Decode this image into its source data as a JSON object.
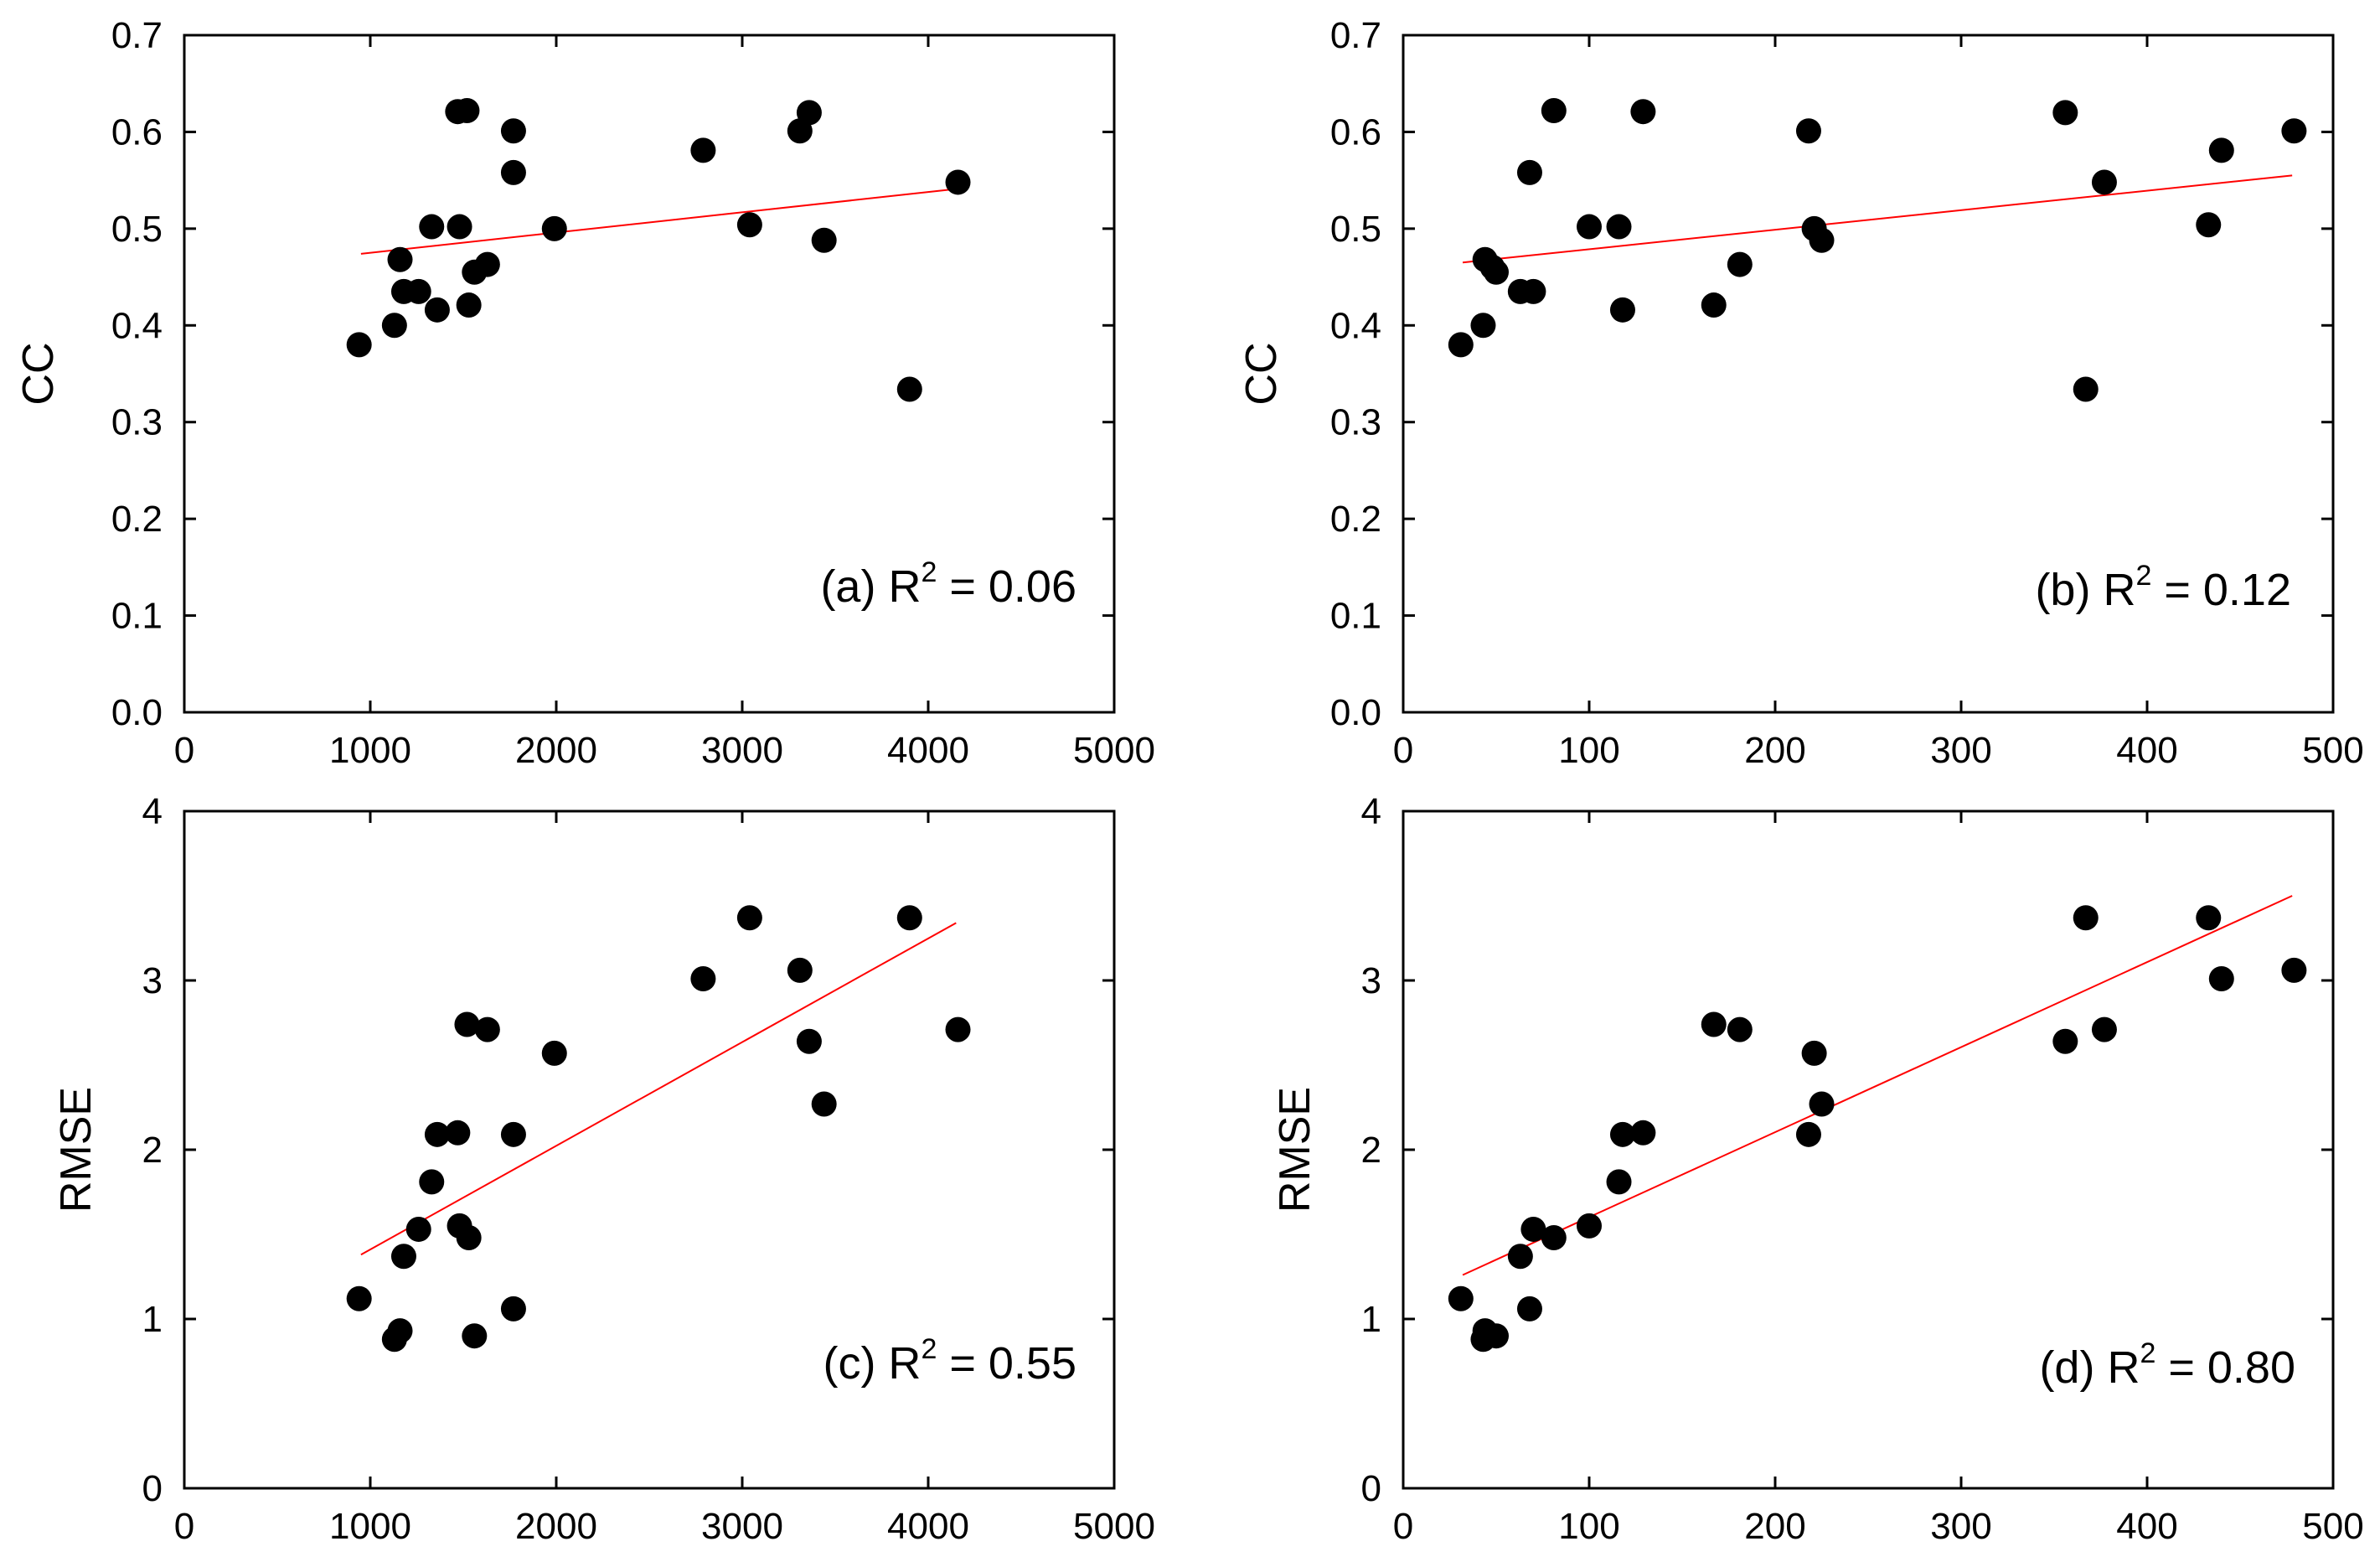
{
  "figure": {
    "panels": 4
  },
  "chart_data": [
    {
      "id": "a",
      "type": "scatter",
      "title": "",
      "xlabel": "",
      "ylabel": "CC",
      "xlim": [
        0,
        5000
      ],
      "ylim": [
        0,
        0.7
      ],
      "xticks": [
        "0",
        "1000",
        "2000",
        "3000",
        "4000",
        "5000"
      ],
      "xtick_values": [
        0,
        1000,
        2000,
        3000,
        4000,
        5000
      ],
      "yticks": [
        "0.0",
        "0.1",
        "0.2",
        "0.3",
        "0.4",
        "0.5",
        "0.6",
        "0.7"
      ],
      "ytick_values": [
        0,
        0.1,
        0.2,
        0.3,
        0.4,
        0.5,
        0.6,
        0.7
      ],
      "annotation": {
        "prefix": "(a) R",
        "sup": "2",
        "suffix": " = 0.06"
      },
      "fit_line": {
        "x": [
          950,
          4150
        ],
        "y": [
          0.474,
          0.541
        ],
        "color": "#ff0000"
      },
      "marker_color": "#000000",
      "points": [
        {
          "x": 940,
          "y": 0.38
        },
        {
          "x": 1130,
          "y": 0.4
        },
        {
          "x": 1160,
          "y": 0.468
        },
        {
          "x": 1180,
          "y": 0.435
        },
        {
          "x": 1260,
          "y": 0.435
        },
        {
          "x": 1330,
          "y": 0.502
        },
        {
          "x": 1360,
          "y": 0.416
        },
        {
          "x": 1470,
          "y": 0.621
        },
        {
          "x": 1480,
          "y": 0.502
        },
        {
          "x": 1520,
          "y": 0.622
        },
        {
          "x": 1530,
          "y": 0.421
        },
        {
          "x": 1560,
          "y": 0.455
        },
        {
          "x": 1630,
          "y": 0.463
        },
        {
          "x": 1770,
          "y": 0.601
        },
        {
          "x": 1770,
          "y": 0.558
        },
        {
          "x": 1990,
          "y": 0.5
        },
        {
          "x": 2790,
          "y": 0.581
        },
        {
          "x": 3040,
          "y": 0.504
        },
        {
          "x": 3310,
          "y": 0.601
        },
        {
          "x": 3360,
          "y": 0.62
        },
        {
          "x": 3440,
          "y": 0.488
        },
        {
          "x": 3900,
          "y": 0.334
        },
        {
          "x": 4160,
          "y": 0.548
        }
      ]
    },
    {
      "id": "b",
      "type": "scatter",
      "title": "",
      "xlabel": "",
      "ylabel": "CC",
      "xlim": [
        0,
        500
      ],
      "ylim": [
        0,
        0.7
      ],
      "xticks": [
        "0",
        "100",
        "200",
        "300",
        "400",
        "500"
      ],
      "xtick_values": [
        0,
        100,
        200,
        300,
        400,
        500
      ],
      "yticks": [
        "0.0",
        "0.1",
        "0.2",
        "0.3",
        "0.4",
        "0.5",
        "0.6",
        "0.7"
      ],
      "ytick_values": [
        0,
        0.1,
        0.2,
        0.3,
        0.4,
        0.5,
        0.6,
        0.7
      ],
      "annotation": {
        "prefix": "(b) R",
        "sup": "2",
        "suffix": " = 0.12"
      },
      "fit_line": {
        "x": [
          32,
          478
        ],
        "y": [
          0.465,
          0.555
        ],
        "color": "#ff0000"
      },
      "marker_color": "#000000",
      "points": [
        {
          "x": 31,
          "y": 0.38
        },
        {
          "x": 43,
          "y": 0.4
        },
        {
          "x": 44,
          "y": 0.468
        },
        {
          "x": 48,
          "y": 0.46
        },
        {
          "x": 50,
          "y": 0.455
        },
        {
          "x": 63,
          "y": 0.435
        },
        {
          "x": 68,
          "y": 0.558
        },
        {
          "x": 70,
          "y": 0.435
        },
        {
          "x": 81,
          "y": 0.622
        },
        {
          "x": 100,
          "y": 0.502
        },
        {
          "x": 116,
          "y": 0.502
        },
        {
          "x": 118,
          "y": 0.416
        },
        {
          "x": 129,
          "y": 0.621
        },
        {
          "x": 167,
          "y": 0.421
        },
        {
          "x": 181,
          "y": 0.463
        },
        {
          "x": 218,
          "y": 0.601
        },
        {
          "x": 221,
          "y": 0.5
        },
        {
          "x": 225,
          "y": 0.488
        },
        {
          "x": 356,
          "y": 0.62
        },
        {
          "x": 367,
          "y": 0.334
        },
        {
          "x": 377,
          "y": 0.548
        },
        {
          "x": 433,
          "y": 0.504
        },
        {
          "x": 440,
          "y": 0.581
        },
        {
          "x": 479,
          "y": 0.601
        }
      ]
    },
    {
      "id": "c",
      "type": "scatter",
      "title": "",
      "xlabel": "",
      "ylabel": "RMSE",
      "xlim": [
        0,
        5000
      ],
      "ylim": [
        0,
        4
      ],
      "xticks": [
        "0",
        "1000",
        "2000",
        "3000",
        "4000",
        "5000"
      ],
      "xtick_values": [
        0,
        1000,
        2000,
        3000,
        4000,
        5000
      ],
      "yticks": [
        "0",
        "1",
        "2",
        "3",
        "4"
      ],
      "ytick_values": [
        0,
        1,
        2,
        3,
        4
      ],
      "annotation": {
        "prefix": "(c) R",
        "sup": "2",
        "suffix": " = 0.55"
      },
      "fit_line": {
        "x": [
          950,
          4150
        ],
        "y": [
          1.38,
          3.34
        ],
        "color": "#ff0000"
      },
      "marker_color": "#000000",
      "points": [
        {
          "x": 940,
          "y": 1.12
        },
        {
          "x": 1130,
          "y": 0.88
        },
        {
          "x": 1160,
          "y": 0.93
        },
        {
          "x": 1180,
          "y": 1.37
        },
        {
          "x": 1260,
          "y": 1.53
        },
        {
          "x": 1330,
          "y": 1.81
        },
        {
          "x": 1360,
          "y": 2.09
        },
        {
          "x": 1470,
          "y": 2.1
        },
        {
          "x": 1480,
          "y": 1.55
        },
        {
          "x": 1520,
          "y": 2.74
        },
        {
          "x": 1530,
          "y": 1.48
        },
        {
          "x": 1560,
          "y": 0.9
        },
        {
          "x": 1630,
          "y": 2.71
        },
        {
          "x": 1770,
          "y": 2.09
        },
        {
          "x": 1770,
          "y": 1.06
        },
        {
          "x": 1990,
          "y": 2.57
        },
        {
          "x": 2790,
          "y": 3.01
        },
        {
          "x": 3040,
          "y": 3.37
        },
        {
          "x": 3310,
          "y": 3.06
        },
        {
          "x": 3360,
          "y": 2.64
        },
        {
          "x": 3440,
          "y": 2.27
        },
        {
          "x": 3900,
          "y": 3.37
        },
        {
          "x": 4160,
          "y": 2.71
        }
      ]
    },
    {
      "id": "d",
      "type": "scatter",
      "title": "",
      "xlabel": "",
      "ylabel": "RMSE",
      "xlim": [
        0,
        500
      ],
      "ylim": [
        0,
        4
      ],
      "xticks": [
        "0",
        "100",
        "200",
        "300",
        "400",
        "500"
      ],
      "xtick_values": [
        0,
        100,
        200,
        300,
        400,
        500
      ],
      "yticks": [
        "0",
        "1",
        "2",
        "3",
        "4"
      ],
      "ytick_values": [
        0,
        1,
        2,
        3,
        4
      ],
      "annotation": {
        "prefix": "(d) R",
        "sup": "2",
        "suffix": " = 0.80"
      },
      "fit_line": {
        "x": [
          32,
          478
        ],
        "y": [
          1.26,
          3.5
        ],
        "color": "#ff0000"
      },
      "marker_color": "#000000",
      "points": [
        {
          "x": 31,
          "y": 1.12
        },
        {
          "x": 43,
          "y": 0.88
        },
        {
          "x": 44,
          "y": 0.93
        },
        {
          "x": 50,
          "y": 0.9
        },
        {
          "x": 63,
          "y": 1.37
        },
        {
          "x": 68,
          "y": 1.06
        },
        {
          "x": 70,
          "y": 1.53
        },
        {
          "x": 81,
          "y": 1.48
        },
        {
          "x": 100,
          "y": 1.55
        },
        {
          "x": 116,
          "y": 1.81
        },
        {
          "x": 118,
          "y": 2.09
        },
        {
          "x": 129,
          "y": 2.1
        },
        {
          "x": 167,
          "y": 2.74
        },
        {
          "x": 181,
          "y": 2.71
        },
        {
          "x": 218,
          "y": 2.09
        },
        {
          "x": 221,
          "y": 2.57
        },
        {
          "x": 225,
          "y": 2.27
        },
        {
          "x": 356,
          "y": 2.64
        },
        {
          "x": 367,
          "y": 3.37
        },
        {
          "x": 377,
          "y": 2.71
        },
        {
          "x": 433,
          "y": 3.37
        },
        {
          "x": 440,
          "y": 3.01
        },
        {
          "x": 479,
          "y": 3.06
        }
      ]
    }
  ]
}
